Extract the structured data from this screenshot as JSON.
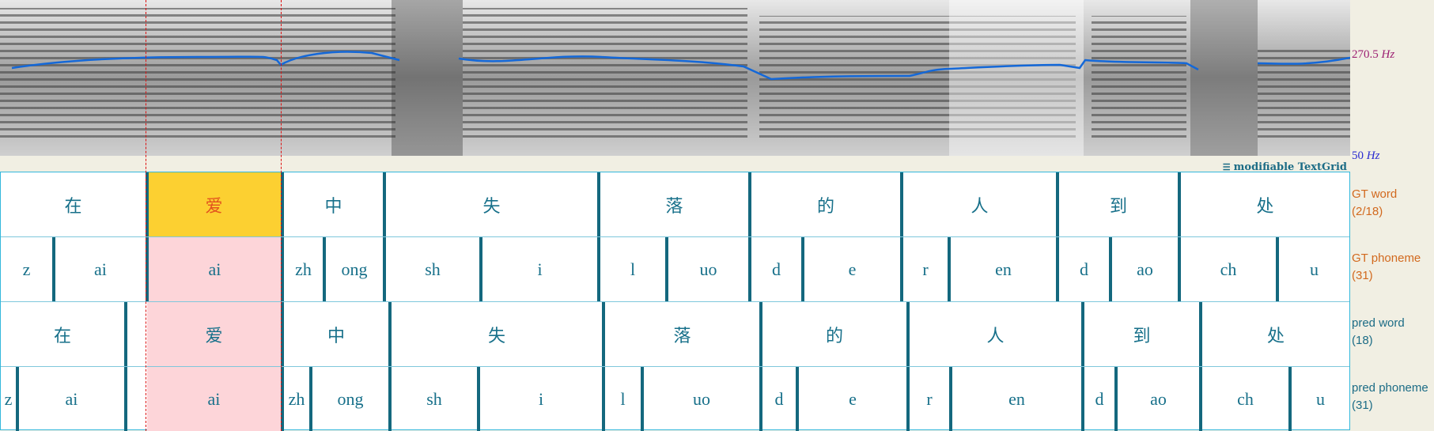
{
  "spectrogram": {
    "pitch_max_value": "270.5",
    "pitch_min_value": "50",
    "unit": "Hz",
    "pitch_color": "#1468d8"
  },
  "textgrid_label": "modifiable TextGrid",
  "tiers": {
    "gt_word": {
      "name": "GT word",
      "count": "(2/18)",
      "items": [
        "在",
        "爱",
        "中",
        "失",
        "落",
        "的",
        "人",
        "到",
        "处"
      ]
    },
    "gt_phoneme": {
      "name": "GT phoneme",
      "count": "(31)",
      "items": [
        "z",
        "ai",
        "ai",
        "zh",
        "ong",
        "sh",
        "i",
        "l",
        "uo",
        "d",
        "e",
        "r",
        "en",
        "d",
        "ao",
        "ch",
        "u"
      ]
    },
    "pred_word": {
      "name": "pred word",
      "count": "(18)",
      "items": [
        "在",
        "爱",
        "中",
        "失",
        "落",
        "的",
        "人",
        "到",
        "处"
      ]
    },
    "pred_phoneme": {
      "name": "pred phoneme",
      "count": "(31)",
      "items": [
        "z",
        "ai",
        "ai",
        "zh",
        "ong",
        "sh",
        "i",
        "l",
        "uo",
        "d",
        "e",
        "r",
        "en",
        "d",
        "ao",
        "ch",
        "u"
      ]
    }
  },
  "colors": {
    "selected_bg": "#fcd031",
    "highlight_bg": "#fdd5d9",
    "boundary": "#14687e",
    "text": "#17708a"
  }
}
